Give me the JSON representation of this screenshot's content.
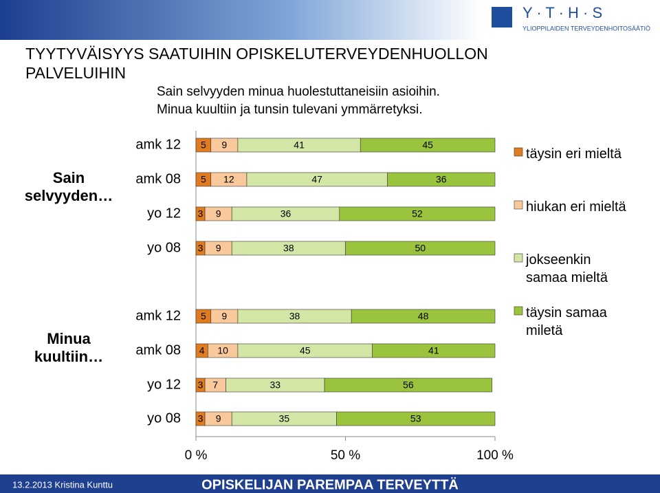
{
  "chart_data": {
    "type": "stacked_bar",
    "title": "TYYTYVÄISYYS SAATUIHIN OPISKELUTERVEYDENHUOLLON PALVELUIHIN",
    "subtitle": [
      "Sain selvyyden minua huolestuttaneisiin asioihin.",
      "Minua kuultiin ja tunsin tulevani ymmärretyksi."
    ],
    "groups": [
      {
        "label": "Sain selvyyden…",
        "categories": [
          "amk 12",
          "amk 08",
          "yo 12",
          "yo 08"
        ]
      },
      {
        "label": "Minua kuultiin…",
        "categories": [
          "amk 12",
          "amk 08",
          "yo 12",
          "yo 08"
        ]
      }
    ],
    "series": [
      {
        "name": "täysin eri mieltä",
        "color": "#e07b20",
        "values": [
          5,
          5,
          3,
          3,
          5,
          4,
          3,
          3
        ]
      },
      {
        "name": "hiukan eri mieltä",
        "color": "#f9c99b",
        "values": [
          9,
          12,
          9,
          9,
          9,
          10,
          7,
          9
        ]
      },
      {
        "name": "jokseenkin samaa mieltä",
        "color": "#d3e6a6",
        "values": [
          41,
          47,
          36,
          38,
          38,
          45,
          33,
          35
        ]
      },
      {
        "name": "täysin samaa miletä",
        "color": "#9bc43e",
        "values": [
          45,
          36,
          52,
          50,
          48,
          41,
          56,
          53
        ]
      }
    ],
    "xlim": [
      0,
      100
    ],
    "xticks": [
      {
        "value": 0,
        "label": "0 %"
      },
      {
        "value": 50,
        "label": "50 %"
      },
      {
        "value": 100,
        "label": "100 %"
      }
    ]
  },
  "logo": {
    "name": "Y · T · H · S",
    "subtitle": "YLIOPPILAIDEN TERVEYDENHOITOSÄÄTIÖ"
  },
  "footer": {
    "date_author": "13.2.2013 Kristina Kunttu",
    "slogan": "OPISKELIJAN PAREMPAA TERVEYTTÄ"
  }
}
